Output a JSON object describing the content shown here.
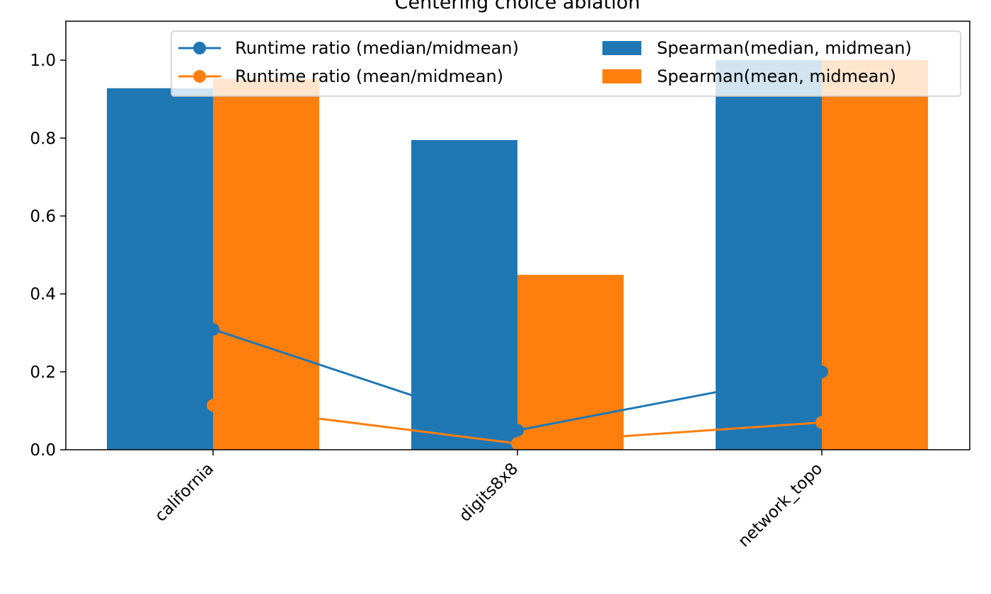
{
  "chart_data": {
    "type": "bar",
    "title": "Centering choice ablation",
    "xlabel": "",
    "ylabel": "",
    "ylim": [
      0,
      1.1
    ],
    "yticks": [
      "0.0",
      "0.2",
      "0.4",
      "0.6",
      "0.8",
      "1.0"
    ],
    "grid": false,
    "legend_position": "top-right",
    "categories": [
      "california",
      "digits8x8",
      "network_topo"
    ],
    "bar_series": [
      {
        "name": "Spearman(median, midmean)",
        "values": [
          0.928,
          0.795,
          1.0
        ],
        "color": "#1f77b4"
      },
      {
        "name": "Spearman(mean, midmean)",
        "values": [
          0.952,
          0.449,
          1.0
        ],
        "color": "#ff7f0e"
      }
    ],
    "line_series": [
      {
        "name": "Runtime ratio (median/midmean)",
        "values": [
          0.309,
          0.05,
          0.2
        ],
        "color": "#1f77b4",
        "marker": "circle"
      },
      {
        "name": "Runtime ratio (mean/midmean)",
        "values": [
          0.114,
          0.016,
          0.07
        ],
        "color": "#ff7f0e",
        "marker": "circle"
      }
    ]
  }
}
